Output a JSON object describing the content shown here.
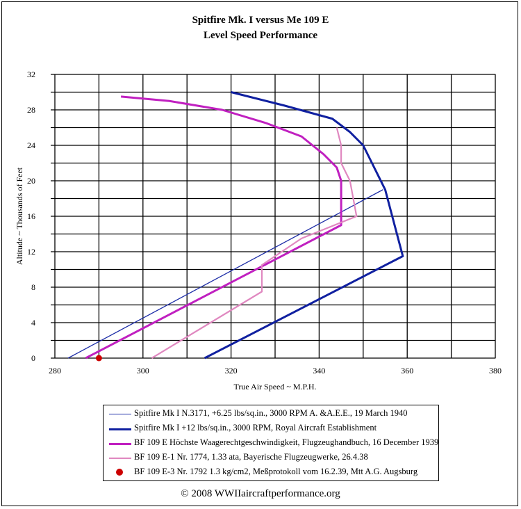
{
  "chart_data": {
    "type": "line",
    "title": "Spitfire Mk. I versus Me 109 E",
    "subtitle": "Level Speed Performance",
    "xlabel": "True Air Speed ~ M.P.H.",
    "ylabel": "Altitude ~ Thousands of Feet",
    "xlim": [
      280,
      380
    ],
    "ylim": [
      0,
      32
    ],
    "xticks": [
      "280",
      "300",
      "320",
      "340",
      "360",
      "380"
    ],
    "yticks": [
      "0",
      "4",
      "8",
      "12",
      "16",
      "20",
      "24",
      "28",
      "32"
    ],
    "grid": true,
    "legend_position": "bottom",
    "series": [
      {
        "name": "Spitfire Mk I N.3171, +6.25 lbs/sq.in., 3000 RPM  A. &A.E.E., 19 March 1940",
        "color": "#1f2fa8",
        "style": "thin",
        "points": [
          [
            283,
            0
          ],
          [
            354.5,
            19
          ]
        ]
      },
      {
        "name": "Spitfire Mk I +12 lbs/sq.in., 3000 RPM, Royal Aircraft Establishment",
        "color": "#1020a0",
        "style": "thick",
        "points": [
          [
            314,
            0
          ],
          [
            359,
            11.5
          ],
          [
            355,
            19
          ],
          [
            352,
            22
          ],
          [
            350,
            24
          ],
          [
            347,
            25.5
          ],
          [
            343,
            27
          ],
          [
            332,
            28.5
          ],
          [
            320,
            30
          ]
        ]
      },
      {
        "name": "BF 109 E Höchste Waagerechtgeschwindigkeit, Flugzeughandbuch, 16 December 1939",
        "color": "#c020c0",
        "style": "thick",
        "points": [
          [
            287,
            0
          ],
          [
            345,
            15
          ],
          [
            345,
            20
          ],
          [
            344,
            21.5
          ],
          [
            341,
            23
          ],
          [
            336,
            25
          ],
          [
            328,
            26.5
          ],
          [
            318,
            28
          ],
          [
            306,
            29
          ],
          [
            295,
            29.5
          ]
        ]
      },
      {
        "name": "BF 109 E-1 Nr. 1774, 1.33 ata, Bayerische Flugzeugwerke, 26.4.38",
        "color": "#e088c0",
        "style": "medium",
        "points": [
          [
            302,
            0
          ],
          [
            327,
            7.5
          ],
          [
            327,
            10.5
          ],
          [
            336,
            13.5
          ],
          [
            348.5,
            16
          ],
          [
            347,
            20
          ],
          [
            345,
            22
          ],
          [
            345,
            24
          ],
          [
            344,
            26
          ]
        ]
      },
      {
        "name": "BF 109 E-3 Nr. 1792 1.3 kg/cm2, Meßprotokoll vom 16.2.39, Mtt A.G. Augsburg",
        "color": "#cc0000",
        "style": "marker",
        "points": [
          [
            290,
            0
          ]
        ]
      }
    ]
  },
  "footer": {
    "copyright": "© 2008 WWIIaircraftperformance.org"
  }
}
